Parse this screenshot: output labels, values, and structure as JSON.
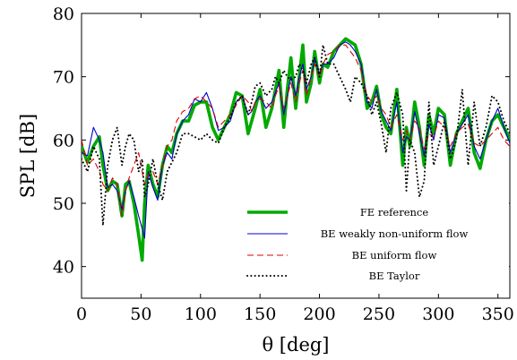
{
  "chart_data": {
    "type": "line",
    "title": "",
    "xlabel": "θ [deg]",
    "ylabel": "SPL [dB]",
    "xlim": [
      0,
      360
    ],
    "ylim": [
      35,
      80
    ],
    "xticks": [
      0,
      50,
      100,
      150,
      200,
      250,
      300,
      350
    ],
    "yticks": [
      40,
      50,
      60,
      70,
      80
    ],
    "grid": false,
    "legend_position": "bottom-right",
    "series": [
      {
        "name": "FE reference",
        "color": "#00aa00",
        "style": "solid-thick",
        "x": [
          0,
          5,
          10,
          15,
          18,
          22,
          26,
          30,
          34,
          37,
          40,
          44,
          48,
          51,
          53,
          56,
          60,
          64,
          68,
          72,
          76,
          80,
          85,
          90,
          95,
          100,
          105,
          110,
          115,
          120,
          125,
          130,
          135,
          140,
          143,
          146,
          150,
          155,
          160,
          163,
          166,
          170,
          173,
          176,
          180,
          183,
          186,
          189,
          193,
          196,
          200,
          203,
          207,
          212,
          217,
          222,
          226,
          230,
          235,
          240,
          244,
          248,
          252,
          256,
          260,
          265,
          270,
          273,
          276,
          280,
          284,
          288,
          292,
          296,
          300,
          305,
          310,
          315,
          320,
          325,
          330,
          335,
          340,
          345,
          350,
          355,
          360
        ],
        "y": [
          59,
          56.5,
          59,
          60.5,
          56,
          52,
          53.5,
          53,
          48,
          53,
          53.5,
          50,
          45,
          41,
          50,
          56,
          53,
          51,
          56,
          59,
          58,
          61,
          63,
          63,
          65.5,
          66,
          66,
          62,
          60,
          62,
          64,
          67.5,
          67,
          61,
          63,
          65,
          68,
          62,
          65,
          68,
          71,
          62,
          68,
          73,
          65,
          70,
          75,
          66,
          69,
          74,
          69,
          72,
          71.5,
          74,
          75,
          76,
          75.5,
          75,
          72,
          65,
          66,
          68.5,
          64,
          62,
          61,
          68,
          56,
          62,
          59,
          66,
          62,
          56,
          64,
          61,
          65,
          64,
          56,
          61,
          63,
          65,
          58,
          55.5,
          60,
          63,
          64,
          62,
          60
        ]
      },
      {
        "name": "BE weakly non-uniform flow",
        "color": "#0000cc",
        "style": "solid",
        "x": [
          0,
          5,
          10,
          15,
          18,
          22,
          26,
          30,
          34,
          37,
          40,
          44,
          48,
          51,
          53,
          56,
          60,
          64,
          68,
          72,
          76,
          80,
          85,
          90,
          95,
          100,
          105,
          110,
          115,
          120,
          125,
          130,
          135,
          140,
          143,
          146,
          150,
          155,
          160,
          163,
          166,
          170,
          173,
          176,
          180,
          183,
          186,
          189,
          193,
          196,
          200,
          203,
          207,
          212,
          217,
          222,
          226,
          230,
          235,
          240,
          244,
          248,
          252,
          256,
          260,
          265,
          270,
          273,
          276,
          280,
          284,
          288,
          292,
          296,
          300,
          305,
          310,
          315,
          320,
          325,
          330,
          335,
          340,
          345,
          350,
          355,
          360
        ],
        "y": [
          58,
          57.5,
          62,
          60,
          58,
          52.5,
          53,
          52,
          49,
          52,
          53.5,
          51,
          48,
          46,
          44.5,
          55,
          52.5,
          50.5,
          56,
          58,
          57,
          61,
          63,
          64,
          66.5,
          66,
          67.5,
          65,
          61.5,
          62,
          63,
          66,
          67,
          64,
          64.5,
          66,
          67,
          65,
          66,
          67.5,
          69,
          64,
          67,
          70,
          67,
          70,
          72,
          68,
          70,
          73,
          70.5,
          72,
          72,
          73,
          75,
          75.5,
          75,
          74,
          72,
          66,
          65,
          68,
          64.5,
          63,
          61.5,
          66,
          58,
          60.5,
          60,
          64.5,
          61,
          57.5,
          62.5,
          60,
          64,
          63.5,
          58,
          61,
          62.5,
          64,
          59,
          57,
          60,
          63,
          65,
          62,
          59.5
        ]
      },
      {
        "name": "BE uniform flow",
        "color": "#dd0000",
        "style": "dashed",
        "x": [
          0,
          5,
          10,
          15,
          18,
          22,
          26,
          30,
          34,
          37,
          40,
          44,
          48,
          51,
          53,
          56,
          60,
          64,
          68,
          72,
          76,
          80,
          85,
          90,
          95,
          100,
          105,
          110,
          115,
          120,
          125,
          130,
          135,
          140,
          143,
          146,
          150,
          155,
          160,
          163,
          166,
          170,
          173,
          176,
          180,
          183,
          186,
          189,
          193,
          196,
          200,
          203,
          207,
          212,
          217,
          222,
          226,
          230,
          235,
          240,
          244,
          248,
          252,
          256,
          260,
          265,
          270,
          273,
          276,
          280,
          284,
          288,
          292,
          296,
          300,
          305,
          310,
          315,
          320,
          325,
          330,
          335,
          340,
          345,
          350,
          355,
          360
        ],
        "y": [
          60,
          56,
          57,
          55,
          53,
          52,
          54,
          53,
          48,
          52,
          54,
          56,
          58,
          55,
          53,
          54.5,
          55,
          53,
          56,
          59,
          60,
          63,
          64.5,
          65,
          66.5,
          67,
          66,
          65,
          62,
          63,
          64,
          65.5,
          67,
          66,
          64.5,
          66,
          66.5,
          66,
          65,
          67,
          68.5,
          65,
          67,
          69,
          66,
          69,
          71,
          67,
          70,
          72,
          70,
          72,
          73.5,
          74,
          75,
          75,
          74,
          73,
          71,
          67,
          66,
          67,
          65,
          64,
          62,
          64,
          60,
          61.5,
          60,
          63,
          62,
          58.5,
          61,
          60.5,
          63,
          62,
          59,
          61,
          62,
          62.5,
          59.5,
          59,
          60,
          61,
          62,
          60,
          59
        ]
      },
      {
        "name": "BE Taylor",
        "color": "#000000",
        "style": "dotted",
        "x": [
          0,
          5,
          10,
          15,
          18,
          22,
          26,
          30,
          34,
          37,
          40,
          44,
          48,
          51,
          53,
          56,
          60,
          64,
          68,
          72,
          76,
          80,
          85,
          90,
          95,
          100,
          105,
          110,
          115,
          120,
          125,
          130,
          135,
          140,
          143,
          146,
          150,
          155,
          160,
          163,
          166,
          170,
          173,
          176,
          180,
          183,
          186,
          189,
          193,
          196,
          200,
          203,
          207,
          212,
          217,
          222,
          226,
          230,
          235,
          240,
          244,
          248,
          252,
          256,
          260,
          265,
          270,
          273,
          276,
          280,
          284,
          288,
          292,
          296,
          300,
          305,
          310,
          315,
          320,
          325,
          330,
          335,
          340,
          345,
          350,
          355,
          360
        ],
        "y": [
          57,
          55,
          59,
          57,
          46.5,
          56,
          60,
          62,
          56,
          59,
          61,
          60,
          55,
          57,
          51,
          53,
          57,
          53,
          50.5,
          55,
          56.5,
          58,
          61,
          61,
          60.5,
          60,
          61,
          60,
          59.5,
          62,
          63.5,
          66,
          67,
          64,
          66,
          68.5,
          69,
          67,
          68,
          70,
          69,
          71,
          70,
          69.5,
          70,
          72,
          71,
          69,
          72,
          73,
          70,
          75,
          72,
          72,
          70,
          68,
          66,
          70,
          69,
          67,
          64,
          66,
          62.5,
          58,
          65,
          67.5,
          64,
          52,
          60,
          58,
          51,
          53.5,
          66,
          56,
          59,
          63,
          57,
          60,
          68,
          56,
          66,
          59,
          62,
          67,
          66,
          63,
          61
        ]
      }
    ]
  }
}
